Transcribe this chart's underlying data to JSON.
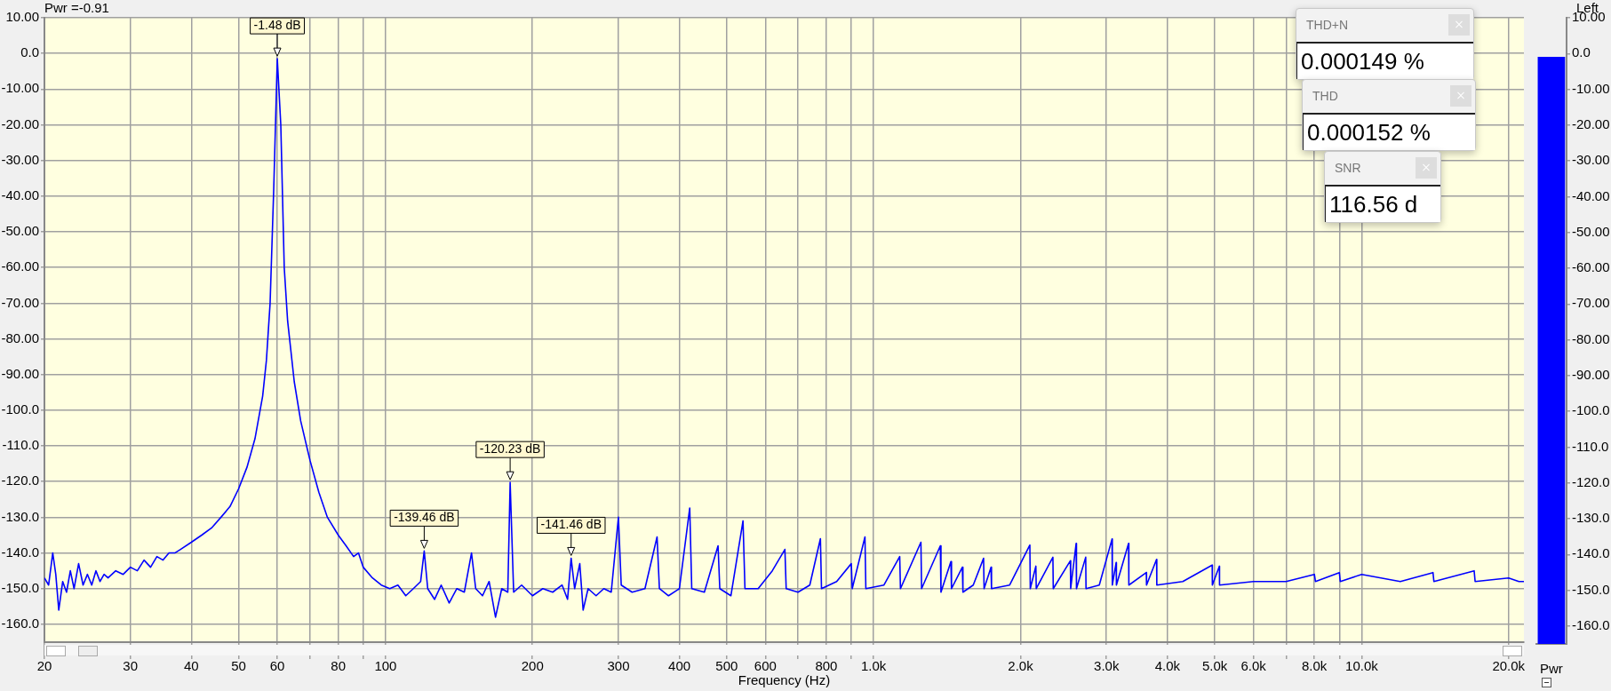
{
  "chart_data": [
    {
      "type": "line",
      "xlabel": "Frequency (Hz)",
      "color": "#0000ff",
      "log": "x",
      "grid": true,
      "legend": false,
      "marker": "none",
      "line_style": "solid",
      "xlim": [
        20,
        21500
      ],
      "ylim": [
        -165,
        10
      ],
      "xticks": [
        20,
        30,
        40,
        50,
        60,
        {
          "value": 70,
          "label": null
        },
        80,
        {
          "value": 90,
          "label": null
        },
        100,
        200,
        300,
        400,
        500,
        600,
        {
          "value": 700,
          "label": null
        },
        800,
        {
          "value": 900,
          "label": null
        },
        {
          "value": 1000,
          "label": "1.0k"
        },
        {
          "value": 2000,
          "label": "2.0k"
        },
        {
          "value": 3000,
          "label": "3.0k"
        },
        {
          "value": 4000,
          "label": "4.0k"
        },
        {
          "value": 5000,
          "label": "5.0k"
        },
        {
          "value": 6000,
          "label": "6.0k"
        },
        {
          "value": 7000,
          "label": null
        },
        {
          "value": 8000,
          "label": "8.0k"
        },
        {
          "value": 9000,
          "label": null
        },
        {
          "value": 10000,
          "label": "10.0k"
        },
        {
          "value": 20000,
          "label": "20.0k"
        }
      ],
      "yticks": [
        {
          "value": 10,
          "label": "10.00"
        },
        {
          "value": 0,
          "label": "0.0"
        },
        {
          "value": -10,
          "label": "-10.00"
        },
        {
          "value": -20,
          "label": "-20.00"
        },
        {
          "value": -30,
          "label": "-30.00"
        },
        {
          "value": -40,
          "label": "-40.00"
        },
        {
          "value": -50,
          "label": "-50.00"
        },
        {
          "value": -60,
          "label": "-60.00"
        },
        {
          "value": -70,
          "label": "-70.00"
        },
        {
          "value": -80,
          "label": "-80.00"
        },
        {
          "value": -90,
          "label": "-90.00"
        },
        {
          "value": -100,
          "label": "-100.0"
        },
        {
          "value": -110,
          "label": "-110.0"
        },
        {
          "value": -120,
          "label": "-120.0"
        },
        {
          "value": -130,
          "label": "-130.0"
        },
        {
          "value": -140,
          "label": "-140.0"
        },
        {
          "value": -150,
          "label": "-150.0"
        },
        {
          "value": -160,
          "label": "-160.0"
        }
      ],
      "x": [
        20,
        20.4,
        20.8,
        21.1,
        21.4,
        21.8,
        22.2,
        22.6,
        23,
        23.5,
        24,
        24.5,
        25,
        25.5,
        26,
        26.5,
        27,
        28,
        29,
        30,
        31,
        32,
        33,
        34,
        35,
        36,
        37,
        38,
        40,
        42,
        44,
        46,
        48,
        50,
        52,
        54,
        56,
        57,
        58,
        59,
        60,
        61,
        62,
        63,
        65,
        67,
        70,
        73,
        76,
        80,
        83,
        86,
        88,
        90,
        94,
        98,
        102,
        106,
        110,
        114,
        118,
        120,
        122,
        126,
        130,
        135,
        140,
        145,
        150,
        153,
        158,
        163,
        168,
        173,
        178,
        180,
        183,
        190,
        200,
        210,
        220,
        230,
        236,
        240,
        244,
        250,
        254,
        260,
        270,
        280,
        290,
        300,
        304,
        320,
        340,
        360,
        364,
        380,
        400,
        420,
        424,
        450,
        480,
        484,
        510,
        540,
        545,
        580,
        620,
        658,
        662,
        700,
        740,
        778,
        782,
        840,
        900,
        904,
        960,
        964,
        1050,
        1131,
        1135,
        1250,
        1254,
        1370,
        1374,
        1440,
        1444,
        1520,
        1524,
        1600,
        1680,
        1684,
        1740,
        1744,
        1900,
        2090,
        2094,
        2150,
        2154,
        2330,
        2334,
        2530,
        2534,
        2600,
        2604,
        2720,
        2724,
        2900,
        3080,
        3084,
        3140,
        3144,
        3330,
        3334,
        3620,
        3624,
        3800,
        3804,
        4300,
        4940,
        4944,
        5110,
        5114,
        6000,
        7000,
        8000,
        8040,
        9000,
        9040,
        10000,
        12000,
        14000,
        14060,
        17000,
        17080,
        20000,
        21000,
        21500
      ],
      "values": [
        -147,
        -149,
        -140,
        -146,
        -156,
        -148,
        -151,
        -145,
        -150,
        -143,
        -149,
        -146,
        -149,
        -145,
        -148,
        -146,
        -147,
        -145,
        -146,
        -144,
        -145,
        -142,
        -144,
        -141,
        -142,
        -140,
        -140,
        -139,
        -137,
        -135,
        -133,
        -130,
        -127,
        -122,
        -116,
        -108,
        -96,
        -86,
        -70,
        -38,
        -1.48,
        -20,
        -60,
        -75,
        -92,
        -103,
        -114,
        -123,
        -130,
        -135,
        -138,
        -141,
        -140,
        -144,
        -147,
        -149,
        -150,
        -149,
        -152,
        -150,
        -148,
        -139.46,
        -150,
        -153,
        -149,
        -154,
        -150,
        -151,
        -140,
        -150,
        -152,
        -148,
        -158,
        -150,
        -151,
        -120.23,
        -151,
        -149,
        -152,
        -150,
        -151,
        -149,
        -153,
        -141.46,
        -150,
        -143,
        -156,
        -150,
        -152,
        -150,
        -151,
        -130,
        -149,
        -151,
        -150,
        -135.5,
        -150,
        -152,
        -150,
        -127.4,
        -150,
        -151,
        -138,
        -150,
        -152,
        -131,
        -150,
        -150,
        -145,
        -139,
        -150,
        -151,
        -149,
        -136,
        -150,
        -148,
        -143,
        -150,
        -135.5,
        -150,
        -149,
        -141,
        -150,
        -137,
        -150,
        -138,
        -151,
        -142.4,
        -150,
        -144,
        -151,
        -149,
        -141.5,
        -150,
        -144,
        -150,
        -149,
        -137.8,
        -150,
        -143.7,
        -150,
        -141.2,
        -150,
        -142.2,
        -150,
        -137.3,
        -150,
        -141.2,
        -150,
        -149,
        -136.1,
        -149,
        -142.7,
        -149,
        -137.3,
        -149,
        -145.5,
        -149,
        -141.8,
        -149,
        -148,
        -143.4,
        -149,
        -143.7,
        -149,
        -148,
        -148,
        -146,
        -148,
        -145.5,
        -148,
        -146,
        -148,
        -145.5,
        -148,
        -145,
        -148,
        -147,
        -148,
        -148
      ],
      "annotations": [
        {
          "text": "-1.48 dB",
          "x": 60,
          "y": -1.48
        },
        {
          "text": "-139.46 dB",
          "x": 120,
          "y": -139.46
        },
        {
          "text": "-120.23 dB",
          "x": 180,
          "y": -120.23
        },
        {
          "text": "-141.46 dB",
          "x": 240,
          "y": -141.46
        },
        "Pwr =-0.91",
        "THD+N",
        "0.000149 %",
        "THD",
        "0.000152 %",
        "SNR",
        "116.56 d"
      ]
    },
    {
      "type": "bar",
      "categories": [
        "Pwr"
      ],
      "base": [
        -165
      ],
      "values": [
        164.09
      ],
      "color": "#0000ff",
      "grid": false,
      "legend": false,
      "ylim": [
        -165,
        10
      ],
      "yticks": [
        {
          "value": 10,
          "label": "10.00"
        },
        {
          "value": 0,
          "label": "0.0"
        },
        {
          "value": -10,
          "label": "-10.00"
        },
        {
          "value": -20,
          "label": "-20.00"
        },
        {
          "value": -30,
          "label": "-30.00"
        },
        {
          "value": -40,
          "label": "-40.00"
        },
        {
          "value": -50,
          "label": "-50.00"
        },
        {
          "value": -60,
          "label": "-60.00"
        },
        {
          "value": -70,
          "label": "-70.00"
        },
        {
          "value": -80,
          "label": "-80.00"
        },
        {
          "value": -90,
          "label": "-90.00"
        },
        {
          "value": -100,
          "label": "-100.0"
        },
        {
          "value": -110,
          "label": "-110.0"
        },
        {
          "value": -120,
          "label": "-120.0"
        },
        {
          "value": -130,
          "label": "-130.0"
        },
        {
          "value": -140,
          "label": "-140.0"
        },
        {
          "value": -150,
          "label": "-150.0"
        },
        {
          "value": -160,
          "label": "-160.0"
        }
      ],
      "annotations": [
        "Left"
      ]
    }
  ]
}
